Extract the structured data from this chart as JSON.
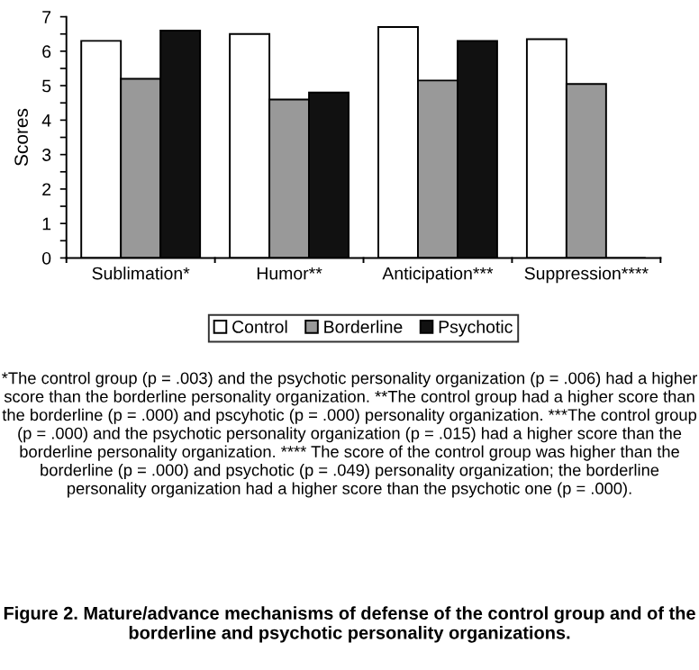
{
  "chart_data": {
    "type": "bar",
    "ylabel": "Scores",
    "categories": [
      "Sublimation*",
      "Humor**",
      "Anticipation***",
      "Suppression****"
    ],
    "series": [
      {
        "name": "Control",
        "color": "#ffffff",
        "values": [
          6.3,
          6.5,
          6.7,
          6.35
        ]
      },
      {
        "name": "Borderline",
        "color": "#999999",
        "values": [
          5.2,
          4.6,
          5.15,
          5.05
        ]
      },
      {
        "name": "Psychotic",
        "color": "#111111",
        "values": [
          6.6,
          4.8,
          6.3,
          0
        ]
      }
    ],
    "ylim": [
      0,
      7
    ],
    "yticks": [
      0,
      {
        "value": 0.5,
        "label": null
      },
      1,
      {
        "value": 1.5,
        "label": null
      },
      2,
      {
        "value": 2.5,
        "label": null
      },
      3,
      {
        "value": 3.5,
        "label": null
      },
      4,
      {
        "value": 4.5,
        "label": null
      },
      5,
      {
        "value": 5.5,
        "label": null
      },
      6,
      {
        "value": 6.5,
        "label": null
      },
      7
    ],
    "grid": false,
    "legend": "bottom",
    "annotations": [
      "*The control group (p = .003) and the psychotic personality organization (p = .006) had a higher score than the borderline personality organization. **The control group had a higher score than the borderline (p = .000) and pscyhotic (p = .000) personality organization. ***The control group (p = .000) and the psychotic personality organization (p = .015) had a higher score than the borderline personality organization. **** The score of the control group was higher than the borderline (p = .000) and psychotic (p = .049) personality organization; the borderline personality organization had a higher score than the psychotic one (p = .000).",
      "Figure 2. Mature/advance mechanisms of defense of the control group and of the borderline and psychotic personality organizations."
    ]
  }
}
